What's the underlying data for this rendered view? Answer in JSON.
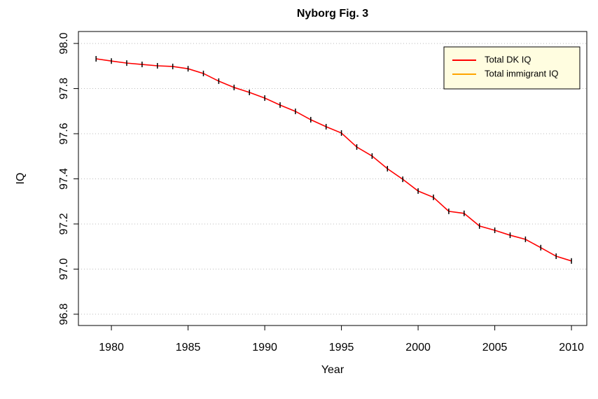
{
  "chart_data": {
    "type": "line",
    "title": "Nyborg Fig. 3",
    "x_label": "Year",
    "y_label": "IQ",
    "x": [
      1979,
      1980,
      1981,
      1982,
      1983,
      1984,
      1985,
      1986,
      1987,
      1988,
      1989,
      1990,
      1991,
      1992,
      1993,
      1994,
      1995,
      1996,
      1997,
      1998,
      1999,
      2000,
      2001,
      2002,
      2003,
      2004,
      2005,
      2006,
      2007,
      2008,
      2009,
      2010
    ],
    "series": [
      {
        "name": "Total DK IQ",
        "color": "#ff0000",
        "values": [
          97.932,
          97.922,
          97.913,
          97.907,
          97.901,
          97.898,
          97.888,
          97.867,
          97.833,
          97.805,
          97.783,
          97.758,
          97.727,
          97.699,
          97.662,
          97.631,
          97.603,
          97.541,
          97.501,
          97.445,
          97.398,
          97.346,
          97.318,
          97.256,
          97.247,
          97.191,
          97.172,
          97.15,
          97.132,
          97.095,
          97.057,
          97.036
        ]
      },
      {
        "name": "Total immigrant IQ",
        "color": "#ffa500",
        "values": [
          null,
          null,
          null,
          null,
          null,
          null,
          null,
          null,
          null,
          null,
          null,
          null,
          null,
          null,
          null,
          null,
          null,
          null,
          null,
          null,
          null,
          null,
          null,
          null,
          null,
          null,
          null,
          null,
          null,
          null,
          null,
          null
        ]
      }
    ],
    "xlim": [
      1977.85,
      2011.0
    ],
    "xticks": [
      1980,
      1985,
      1990,
      1995,
      2000,
      2005,
      2010
    ],
    "ylim": [
      96.75,
      98.053
    ],
    "yticks": [
      {
        "value": 96.8,
        "label": "96.8"
      },
      {
        "value": 97.0,
        "label": "97.0"
      },
      {
        "value": 97.2,
        "label": "97.2"
      },
      {
        "value": 97.4,
        "label": "97.4"
      },
      {
        "value": 97.6,
        "label": "97.6"
      },
      {
        "value": 97.8,
        "label": "97.8"
      },
      {
        "value": 98.0,
        "label": "98.0"
      }
    ],
    "grid": true,
    "legend_position": "top-right"
  }
}
